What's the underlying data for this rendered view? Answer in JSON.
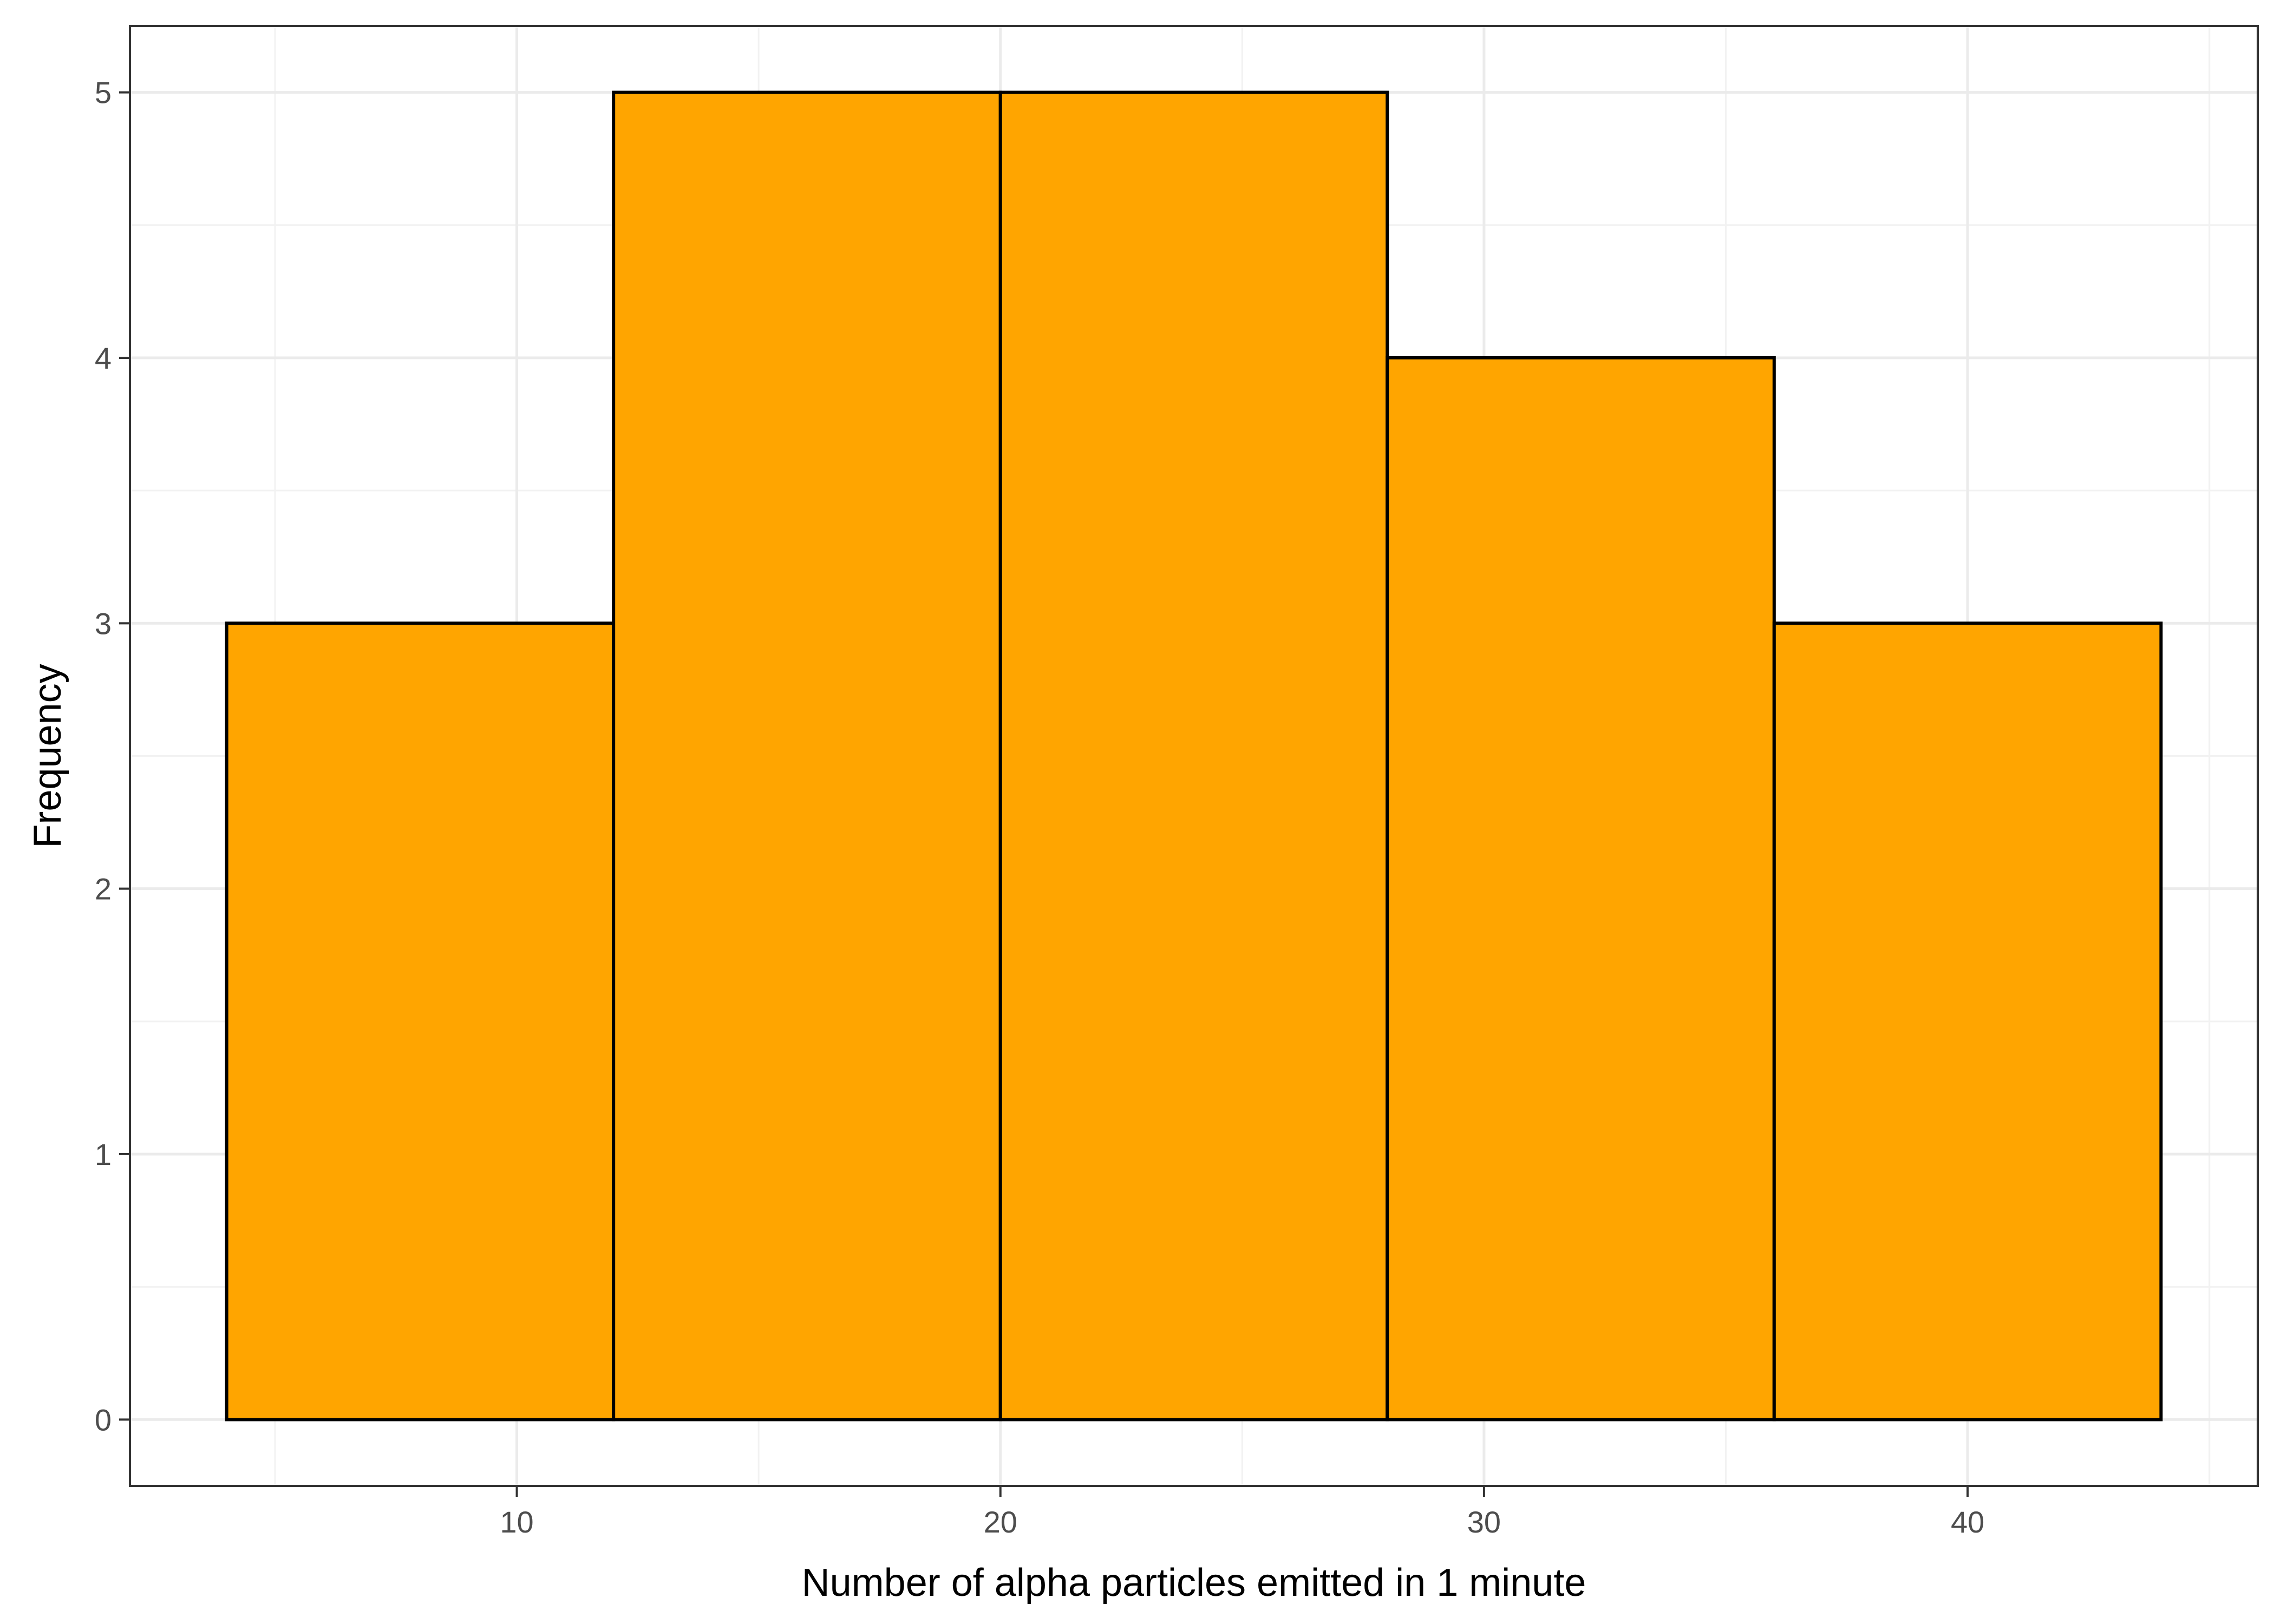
{
  "chart_data": {
    "type": "bar",
    "subtype": "histogram",
    "title": "",
    "xlabel": "Number of alpha particles emitted in 1 minute",
    "ylabel": "Frequency",
    "bins": [
      {
        "start": 4,
        "end": 12,
        "count": 3
      },
      {
        "start": 12,
        "end": 20,
        "count": 5
      },
      {
        "start": 20,
        "end": 28,
        "count": 5
      },
      {
        "start": 28,
        "end": 36,
        "count": 4
      },
      {
        "start": 36,
        "end": 44,
        "count": 3
      }
    ],
    "xlim": [
      2,
      46
    ],
    "ylim": [
      -0.25,
      5.25
    ],
    "x_ticks": [
      10,
      20,
      30,
      40
    ],
    "x_minor_ticks": [
      5,
      15,
      25,
      35,
      45
    ],
    "y_ticks": [
      0,
      1,
      2,
      3,
      4,
      5
    ],
    "y_minor_ticks": [
      0.5,
      1.5,
      2.5,
      3.5,
      4.5
    ],
    "grid": true,
    "legend": "none",
    "colors": {
      "bar_fill": "#FFA500",
      "bar_outline": "#000000"
    }
  }
}
